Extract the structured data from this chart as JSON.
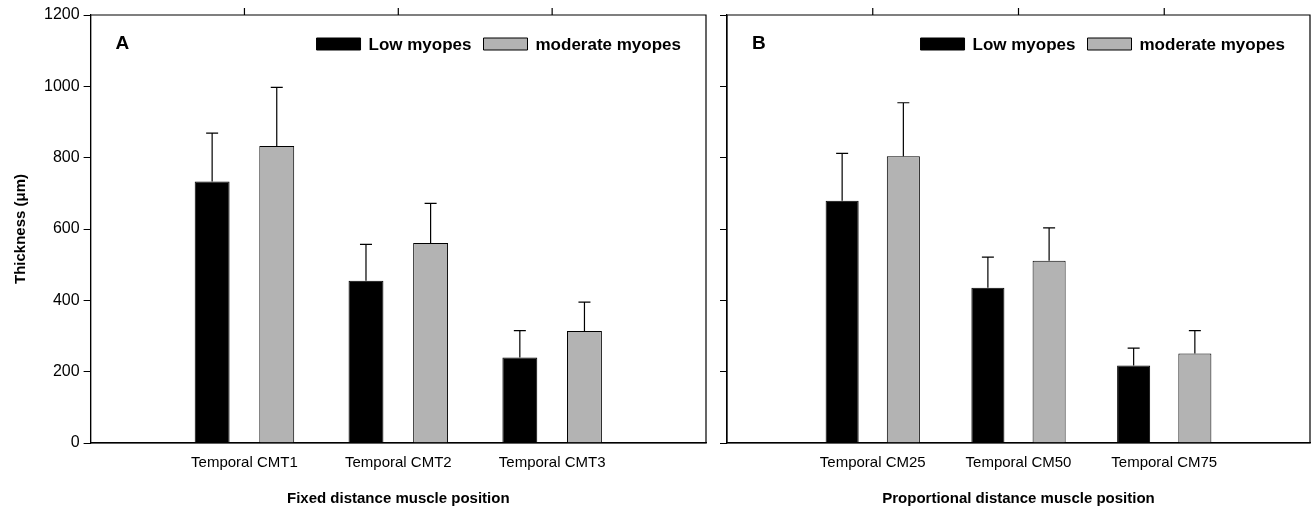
{
  "chart_data": [
    {
      "type": "bar",
      "title": "A",
      "xlabel": "Fixed distance muscle position",
      "ylabel": "Thickness (μm)",
      "categories": [
        "Temporal CMT1",
        "Temporal CMT2",
        "Temporal CMT3"
      ],
      "series": [
        {
          "name": "Low myopes",
          "color": "#000000",
          "values": [
            733,
            455,
            240
          ],
          "errors": [
            [
              733,
              869
            ],
            [
              455,
              557
            ],
            [
              240,
              315
            ]
          ]
        },
        {
          "name": "moderate myopes",
          "color": "#b3b3b3",
          "values": [
            833,
            561,
            314
          ],
          "errors": [
            [
              833,
              997
            ],
            [
              561,
              672
            ],
            [
              314,
              395
            ]
          ]
        }
      ],
      "ylim": [
        0,
        1200
      ],
      "yticks": [
        0,
        200,
        400,
        600,
        800,
        1000,
        1200
      ],
      "legend": "top right",
      "grid": false
    },
    {
      "type": "bar",
      "title": "B",
      "xlabel": "Proportional distance muscle position",
      "categories": [
        "Temporal CM25",
        "Temporal CM50",
        "Temporal CM75"
      ],
      "series": [
        {
          "name": "Low myopes",
          "color": "#000000",
          "values": [
            679,
            435,
            217
          ],
          "errors": [
            [
              679,
              812
            ],
            [
              435,
              521
            ],
            [
              217,
              266
            ]
          ]
        },
        {
          "name": "moderate myopes",
          "color": "#b3b3b3",
          "values": [
            804,
            511,
            251
          ],
          "errors": [
            [
              804,
              954
            ],
            [
              511,
              603
            ],
            [
              251,
              315
            ]
          ]
        }
      ],
      "ylim": [
        0,
        1200
      ],
      "yticks": [
        0,
        200,
        400,
        600,
        800,
        1000,
        1200
      ],
      "legend": "top right",
      "grid": false,
      "tick_labels": "x"
    }
  ]
}
